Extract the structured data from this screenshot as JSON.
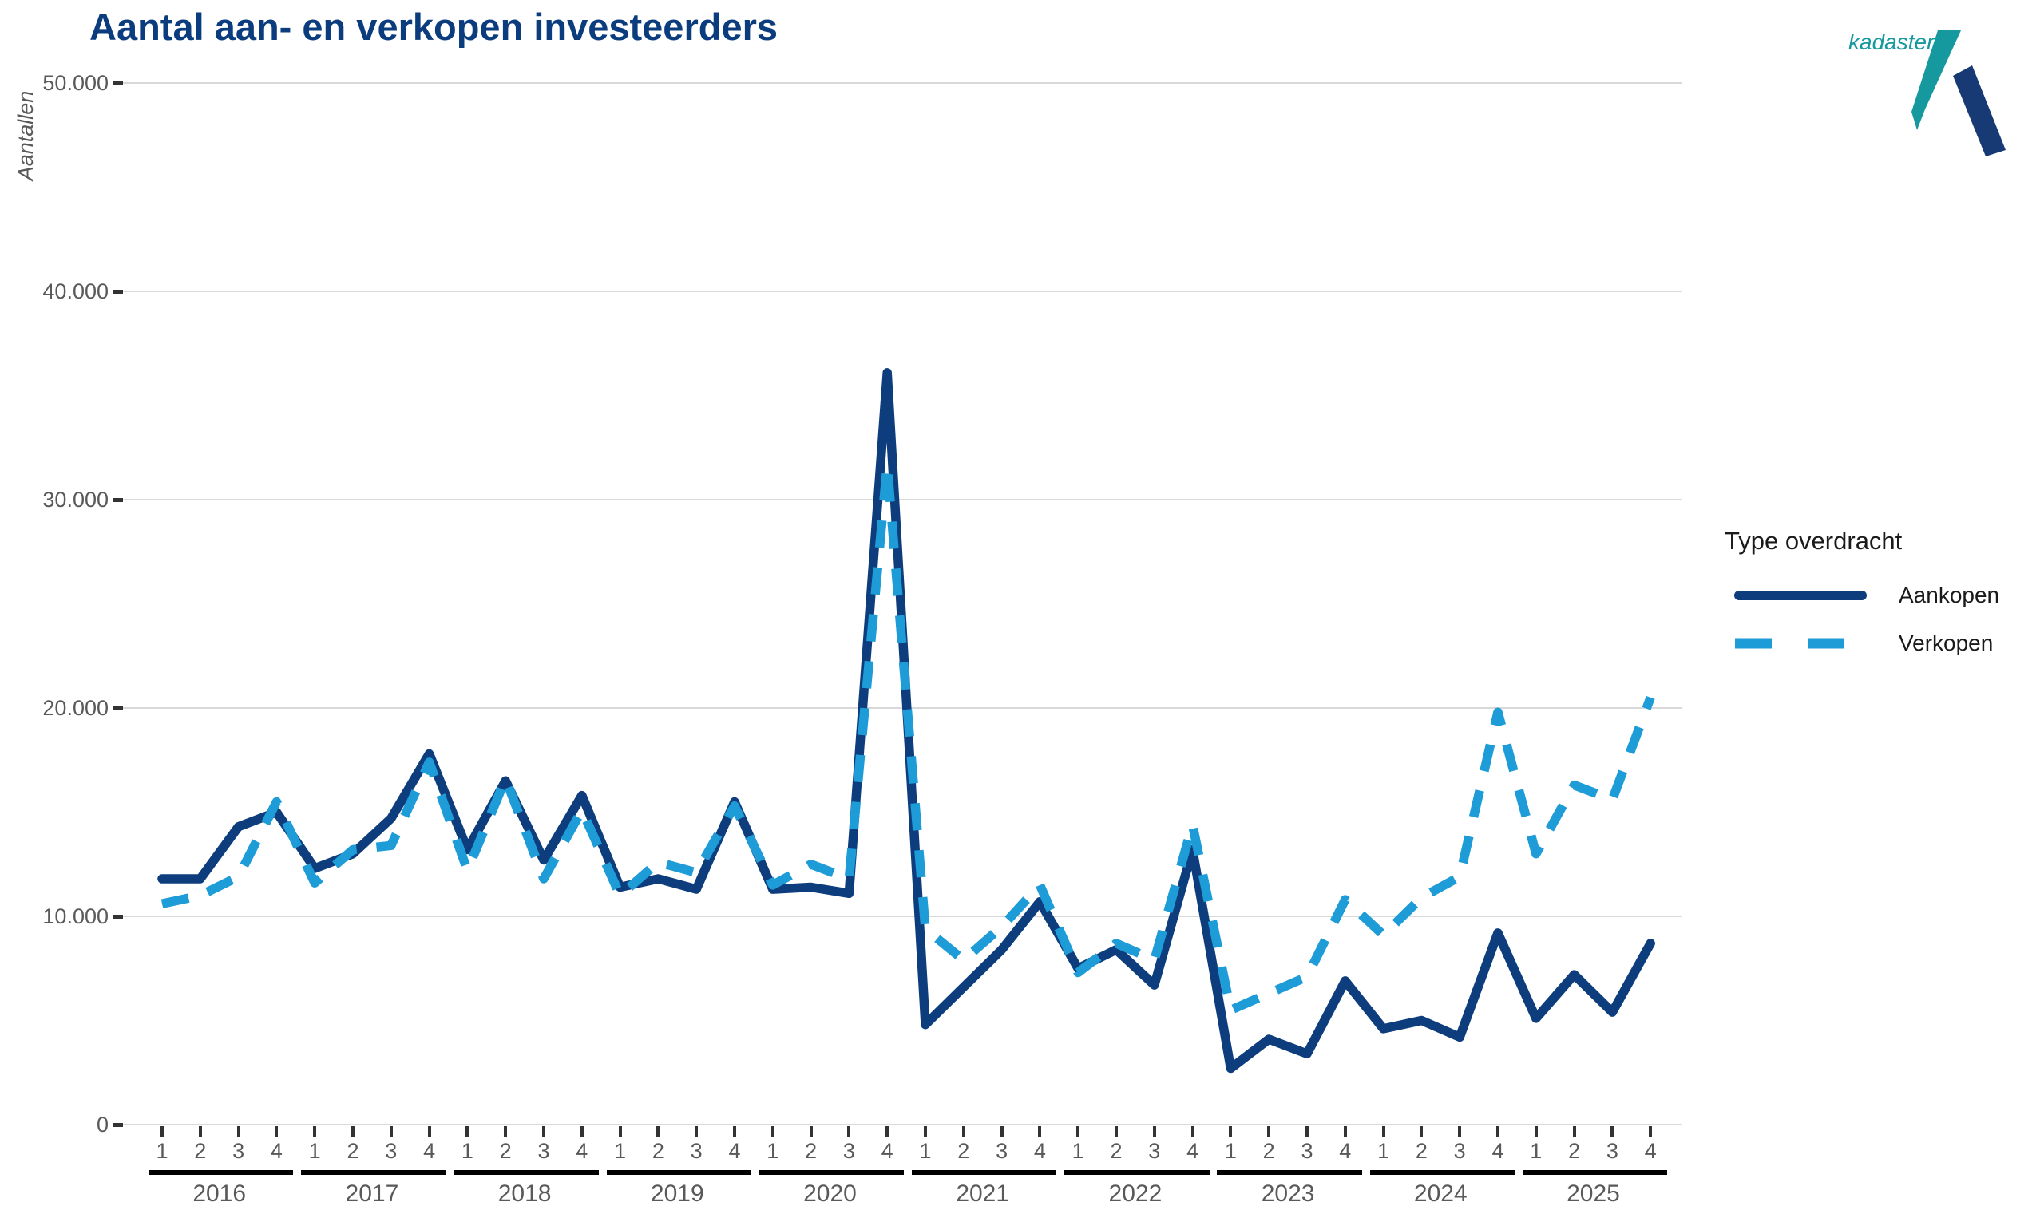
{
  "title": "Aantal aan- en verkopen investeerders",
  "y_axis": {
    "label": "Aantallen"
  },
  "x_axis": {
    "quarter_labels": [
      "1",
      "2",
      "3",
      "4"
    ],
    "years": [
      "2016",
      "2017",
      "2018",
      "2019",
      "2020",
      "2021",
      "2022",
      "2023",
      "2024",
      "2025"
    ]
  },
  "legend": {
    "title": "Type overdracht",
    "items": [
      {
        "label": "Aankopen",
        "style": "solid"
      },
      {
        "label": "Verkopen",
        "style": "dashed"
      }
    ]
  },
  "logo": {
    "text": "kadaster"
  },
  "colors": {
    "aankopen": "#0d3d7c",
    "verkopen": "#1e9cd8",
    "grid": "#d9d9d9",
    "axis_text": "#595959",
    "tick": "#333333",
    "year_bar": "#000000",
    "title": "#0b3c7e",
    "logo_teal": "#16999e",
    "logo_navy": "#173a75"
  },
  "chart_data": {
    "type": "line",
    "title": "Aantal aan- en verkopen investeerders",
    "xlabel": "",
    "ylabel": "Aantallen",
    "ylim": [
      0,
      50000
    ],
    "grid": "horizontal",
    "legend_position": "right",
    "legend_title": "Type overdracht",
    "y_ticks": [
      {
        "value": 0,
        "label": "0"
      },
      {
        "value": 10000,
        "label": "10.000"
      },
      {
        "value": 20000,
        "label": "20.000"
      },
      {
        "value": 30000,
        "label": "30.000"
      },
      {
        "value": 40000,
        "label": "40.000"
      },
      {
        "value": 50000,
        "label": "50.000"
      }
    ],
    "categories": [
      "2016 Q1",
      "2016 Q2",
      "2016 Q3",
      "2016 Q4",
      "2017 Q1",
      "2017 Q2",
      "2017 Q3",
      "2017 Q4",
      "2018 Q1",
      "2018 Q2",
      "2018 Q3",
      "2018 Q4",
      "2019 Q1",
      "2019 Q2",
      "2019 Q3",
      "2019 Q4",
      "2020 Q1",
      "2020 Q2",
      "2020 Q3",
      "2020 Q4",
      "2021 Q1",
      "2021 Q2",
      "2021 Q3",
      "2021 Q4",
      "2022 Q1",
      "2022 Q2",
      "2022 Q3",
      "2022 Q4",
      "2023 Q1",
      "2023 Q2",
      "2023 Q3",
      "2023 Q4",
      "2024 Q1",
      "2024 Q2",
      "2024 Q3",
      "2024 Q4",
      "2025 Q1",
      "2025 Q2",
      "2025 Q3",
      "2025 Q4"
    ],
    "series": [
      {
        "name": "Aankopen",
        "dash": "solid",
        "values": [
          11800,
          11800,
          14300,
          15000,
          12300,
          13000,
          14700,
          17800,
          13200,
          16500,
          12700,
          15800,
          11400,
          11800,
          11300,
          15500,
          11300,
          11400,
          11100,
          36100,
          4800,
          6600,
          8400,
          10700,
          7500,
          8400,
          6700,
          13200,
          2700,
          4100,
          3400,
          6900,
          4600,
          5000,
          4200,
          9200,
          5100,
          7200,
          5400,
          8700
        ]
      },
      {
        "name": "Verkopen",
        "dash": "dashed",
        "values": [
          10600,
          11000,
          11900,
          15500,
          11600,
          13200,
          13400,
          17400,
          12200,
          16600,
          11800,
          15100,
          11000,
          12600,
          12100,
          15300,
          11500,
          12500,
          11800,
          31700,
          9400,
          7900,
          9500,
          11500,
          7300,
          8700,
          7900,
          14400,
          5500,
          6300,
          7100,
          10800,
          9100,
          10900,
          11900,
          19800,
          13000,
          16300,
          15600,
          20500
        ]
      }
    ]
  }
}
